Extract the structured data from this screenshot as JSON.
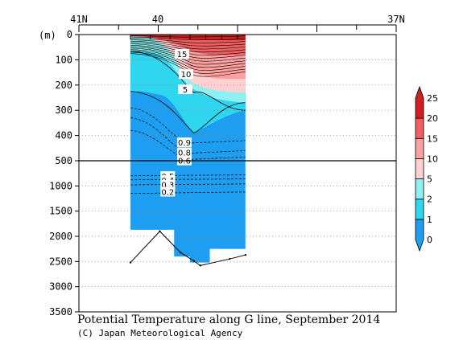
{
  "chart_data": {
    "type": "heatmap",
    "title": "Potential Temperature along G line, September 2014",
    "credit": "(C) Japan Meteorological Agency",
    "x_axis": {
      "tick_labels": [
        "41N",
        "40",
        "37N"
      ],
      "tick_values": [
        41,
        40,
        37
      ],
      "range": [
        41,
        37
      ]
    },
    "y_axis": {
      "unit_label": "(m)",
      "upper_ticks": [
        0,
        100,
        200,
        300,
        400,
        500
      ],
      "lower_ticks": [
        1000,
        1500,
        2000,
        2500,
        3000,
        3500
      ],
      "break_depth": 500,
      "range": [
        0,
        3500
      ]
    },
    "colorbar": {
      "levels": [
        0,
        1,
        2,
        5,
        10,
        15,
        20,
        25
      ],
      "colors": [
        "#1e9ef0",
        "#2ed6f0",
        "#8ef0f0",
        "#ffd0d0",
        "#ffa0a0",
        "#f06060",
        "#d02020"
      ]
    },
    "contour_labels": [
      {
        "text": "15",
        "lat": 39.7,
        "depth": 80
      },
      {
        "text": "10",
        "lat": 39.65,
        "depth": 160
      },
      {
        "text": "5",
        "lat": 39.66,
        "depth": 220
      },
      {
        "text": "0.9",
        "lat": 39.67,
        "depth": 430
      },
      {
        "text": "0.8",
        "lat": 39.67,
        "depth": 470
      },
      {
        "text": "0.6",
        "lat": 39.67,
        "depth": 510
      },
      {
        "text": "0.5",
        "lat": 39.88,
        "depth": 820
      },
      {
        "text": "0.4",
        "lat": 39.88,
        "depth": 900
      },
      {
        "text": "0.3",
        "lat": 39.88,
        "depth": 990
      },
      {
        "text": "0.2",
        "lat": 39.88,
        "depth": 1130
      }
    ],
    "stations_lat": [
      40.35,
      40.1,
      39.85,
      39.6,
      39.4,
      39.2,
      39.0
    ],
    "seafloor": [
      {
        "lat": 40.35,
        "depth": 2520
      },
      {
        "lat": 39.98,
        "depth": 1900
      },
      {
        "lat": 39.72,
        "depth": 2320
      },
      {
        "lat": 39.55,
        "depth": 2490
      },
      {
        "lat": 39.47,
        "depth": 2580
      },
      {
        "lat": 39.1,
        "depth": 2450
      },
      {
        "lat": 38.9,
        "depth": 2370
      }
    ],
    "data_section": {
      "lat_north": 40.35,
      "lat_south": 38.9,
      "bottom_profile": [
        {
          "lat": 40.35,
          "depth": 1870
        },
        {
          "lat": 39.8,
          "depth": 1870
        },
        {
          "lat": 39.8,
          "depth": 2400
        },
        {
          "lat": 39.6,
          "depth": 2400
        },
        {
          "lat": 39.6,
          "depth": 2520
        },
        {
          "lat": 39.35,
          "depth": 2520
        },
        {
          "lat": 39.35,
          "depth": 2250
        },
        {
          "lat": 38.9,
          "depth": 2250
        }
      ]
    }
  }
}
